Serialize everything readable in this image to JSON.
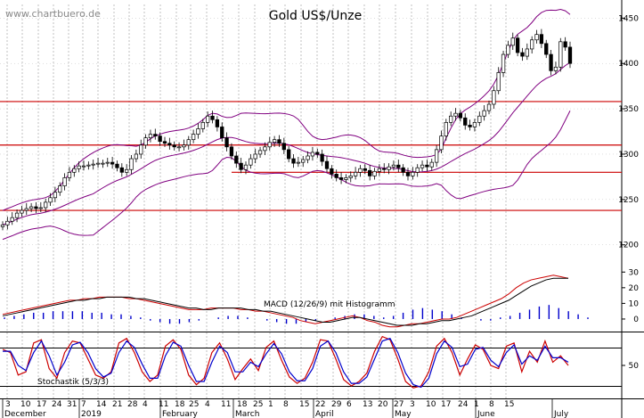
{
  "chart_data": [
    {
      "type": "candlestick",
      "title": "Gold US$/Unze",
      "watermark": "www.chartbuero.de",
      "y_ticks": [
        1200,
        1250,
        1300,
        1350,
        1400,
        1450
      ],
      "y_tick_labels": [
        "1200",
        "1250",
        "1300",
        "1350",
        "1400",
        "1450"
      ],
      "ylim": [
        1183,
        1470
      ],
      "support_resistance": [
        1238,
        1280,
        1310,
        1358
      ],
      "colors": {
        "price": "#000000",
        "resistance": "#cc0000",
        "bollinger": "#800080",
        "grid": "#999999"
      },
      "series": [
        {
          "name": "",
          "values": [
            1222,
            1226,
            1230,
            1235,
            1238,
            1240,
            1242,
            1240,
            1241,
            1247,
            1252,
            1258,
            1265,
            1274,
            1280,
            1284,
            1287,
            1287,
            1288,
            1289,
            1290,
            1290,
            1291,
            1289,
            1285,
            1280,
            1283,
            1295,
            1300,
            1310,
            1318,
            1322,
            1320,
            1314,
            1312,
            1310,
            1308,
            1308,
            1310,
            1316,
            1322,
            1328,
            1335,
            1342,
            1338,
            1330,
            1318,
            1308,
            1298,
            1290,
            1283,
            1288,
            1295,
            1300,
            1304,
            1308,
            1313,
            1316,
            1312,
            1305,
            1295,
            1290,
            1291,
            1294,
            1298,
            1302,
            1300,
            1292,
            1284,
            1278,
            1274,
            1272,
            1274,
            1276,
            1280,
            1284,
            1282,
            1276,
            1281,
            1284,
            1283,
            1286,
            1288,
            1285,
            1280,
            1276,
            1280,
            1285,
            1288,
            1286,
            1291,
            1305,
            1320,
            1335,
            1342,
            1345,
            1340,
            1332,
            1330,
            1335,
            1342,
            1348,
            1355,
            1370,
            1390,
            1410,
            1420,
            1428,
            1412,
            1408,
            1416,
            1426,
            1432,
            1422,
            1410,
            1392,
            1396,
            1424,
            1418,
            1400
          ]
        }
      ]
    },
    {
      "type": "line",
      "title": "MACD (12/26/9) mit Histogramm",
      "y_ticks": [
        0,
        10,
        20,
        30
      ],
      "y_tick_labels": [
        "0",
        "10",
        "20",
        "30"
      ],
      "ylim": [
        -8,
        33
      ],
      "series": [
        {
          "name": "",
          "values": [
            3,
            4,
            5,
            6,
            7,
            8,
            9,
            10,
            11,
            12,
            12,
            13,
            13,
            14,
            14,
            14,
            14,
            13,
            13,
            12,
            11,
            10,
            9,
            8,
            7,
            6,
            6,
            6,
            7,
            7,
            7,
            7,
            6,
            6,
            5,
            5,
            4,
            3,
            2,
            1,
            -1,
            -2,
            -3,
            -2,
            -1,
            0,
            1,
            2,
            1,
            -1,
            -2,
            -4,
            -5,
            -5,
            -4,
            -3,
            -3,
            -2,
            -1,
            0,
            0,
            1,
            3,
            5,
            7,
            9,
            11,
            13,
            16,
            20,
            23,
            25,
            26,
            27,
            28,
            27,
            26
          ]
        },
        {
          "name": "",
          "values": [
            2,
            3,
            4,
            5,
            6,
            7,
            8,
            9,
            10,
            11,
            12,
            12,
            13,
            13,
            14,
            14,
            14,
            14,
            13,
            13,
            12,
            11,
            10,
            9,
            8,
            7,
            7,
            6,
            6,
            7,
            7,
            7,
            7,
            6,
            6,
            5,
            5,
            4,
            3,
            2,
            1,
            0,
            -1,
            -2,
            -2,
            -1,
            0,
            1,
            1,
            0,
            -1,
            -2,
            -3,
            -4,
            -4,
            -4,
            -3,
            -3,
            -2,
            -1,
            -1,
            0,
            1,
            2,
            4,
            6,
            8,
            10,
            12,
            15,
            18,
            21,
            23,
            25,
            26,
            26,
            26
          ]
        },
        {
          "name": "histogram",
          "values": [
            1,
            2,
            3,
            4,
            4,
            5,
            5,
            5,
            5,
            4,
            4,
            3,
            3,
            2,
            1,
            -1,
            -2,
            -3,
            -3,
            -2,
            -1,
            0,
            1,
            2,
            2,
            1,
            0,
            -1,
            -2,
            -3,
            -3,
            -2,
            -1,
            0,
            1,
            2,
            3,
            3,
            2,
            1,
            2,
            4,
            6,
            7,
            6,
            5,
            3,
            1,
            0,
            -1,
            -1,
            1,
            2,
            4,
            6,
            8,
            9,
            7,
            5,
            3,
            1
          ]
        }
      ]
    },
    {
      "type": "line",
      "title": "Stochastik (5/3/3)",
      "y_ticks": [
        50
      ],
      "y_tick_labels": [
        "50"
      ],
      "ylim": [
        0,
        100
      ],
      "series": [
        {
          "name": "",
          "values": [
            75,
            70,
            35,
            40,
            85,
            90,
            45,
            30,
            70,
            88,
            85,
            60,
            35,
            30,
            40,
            85,
            92,
            70,
            40,
            25,
            35,
            80,
            90,
            75,
            35,
            20,
            30,
            70,
            85,
            60,
            28,
            45,
            60,
            42,
            78,
            88,
            58,
            32,
            22,
            30,
            55,
            90,
            88,
            60,
            28,
            18,
            25,
            38,
            72,
            95,
            90,
            60,
            25,
            15,
            18,
            40,
            80,
            92,
            70,
            35,
            60,
            82,
            75,
            50,
            45,
            80,
            85,
            40,
            72,
            55,
            88,
            55,
            65,
            50
          ]
        },
        {
          "name": "",
          "values": [
            72,
            72,
            50,
            42,
            70,
            88,
            65,
            35,
            55,
            82,
            86,
            70,
            45,
            32,
            38,
            70,
            88,
            78,
            52,
            30,
            30,
            65,
            86,
            80,
            50,
            25,
            25,
            55,
            80,
            70,
            40,
            40,
            55,
            48,
            68,
            84,
            68,
            40,
            26,
            26,
            45,
            80,
            88,
            70,
            40,
            22,
            22,
            32,
            60,
            88,
            92,
            70,
            38,
            20,
            16,
            30,
            68,
            88,
            78,
            48,
            52,
            75,
            78,
            58,
            48,
            70,
            82,
            52,
            65,
            58,
            80,
            62,
            62,
            55
          ]
        }
      ]
    }
  ],
  "x_axis": {
    "day_labels": [
      "3",
      "10",
      "17",
      "24",
      "31",
      "7",
      "14",
      "21",
      "28",
      "4",
      "11",
      "18",
      "25",
      "4",
      "11",
      "18",
      "25",
      "1",
      "8",
      "15",
      "22",
      "29",
      "6",
      "13",
      "20",
      "27",
      "3",
      "10",
      "17",
      "24",
      "1",
      "8",
      "15"
    ],
    "month_labels": [
      "December",
      "2019",
      "February",
      "March",
      "April",
      "May",
      "June",
      "July"
    ]
  }
}
